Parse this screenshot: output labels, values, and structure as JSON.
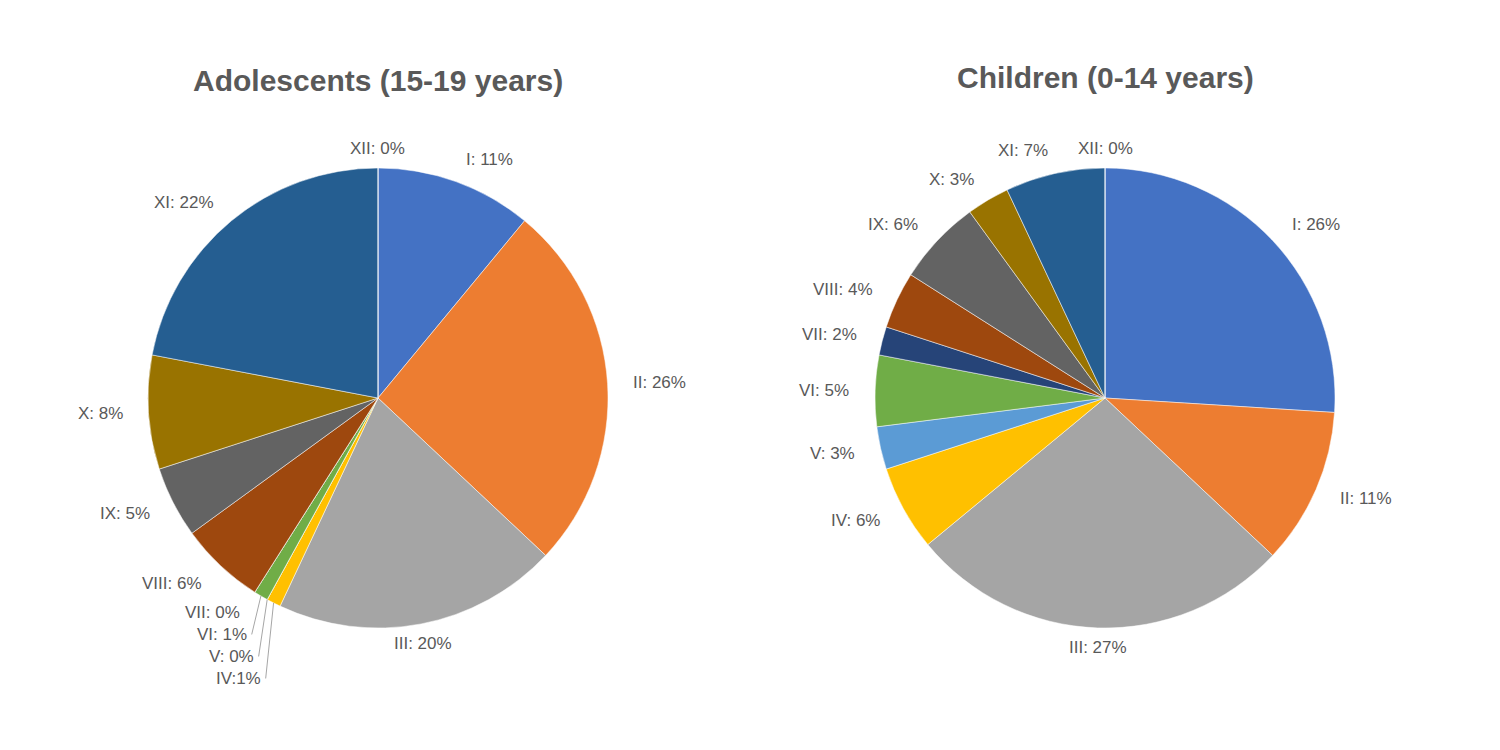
{
  "chart_data": [
    {
      "type": "pie",
      "title": "Adolescents (15-19 years)",
      "categories": [
        "I",
        "II",
        "III",
        "IV",
        "V",
        "VI",
        "VII",
        "VIII",
        "IX",
        "X",
        "XI",
        "XII"
      ],
      "values": [
        11,
        26,
        20,
        1,
        0,
        1,
        0,
        6,
        5,
        8,
        22,
        0
      ],
      "value_labels": [
        "I: 11%",
        "II: 26%",
        "III: 20%",
        "IV:1%",
        "V: 0%",
        "VI: 1%",
        "VII: 0%",
        "VIII: 6%",
        "IX: 5%",
        "X: 8%",
        "XI: 22%",
        "XII: 0%"
      ],
      "colors": [
        "#4472c4",
        "#ed7d31",
        "#a5a5a5",
        "#ffc000",
        "#5b9bd5",
        "#70ad47",
        "#264478",
        "#9e480e",
        "#636363",
        "#997300",
        "#255e91",
        "#43682b"
      ],
      "data_labels": true
    },
    {
      "type": "pie",
      "title": "Children (0-14 years)",
      "categories": [
        "I",
        "II",
        "III",
        "IV",
        "V",
        "VI",
        "VII",
        "VIII",
        "IX",
        "X",
        "XI",
        "XII"
      ],
      "values": [
        26,
        11,
        27,
        6,
        3,
        5,
        2,
        4,
        6,
        3,
        7,
        0
      ],
      "value_labels": [
        "I: 26%",
        "II: 11%",
        "III: 27%",
        "IV: 6%",
        "V: 3%",
        "VI: 5%",
        "VII: 2%",
        "VIII: 4%",
        "IX: 6%",
        "X: 3%",
        "XI: 7%",
        "XII: 0%"
      ],
      "colors": [
        "#4472c4",
        "#ed7d31",
        "#a5a5a5",
        "#ffc000",
        "#5b9bd5",
        "#70ad47",
        "#264478",
        "#9e480e",
        "#636363",
        "#997300",
        "#255e91",
        "#43682b"
      ],
      "data_labels": true
    }
  ]
}
